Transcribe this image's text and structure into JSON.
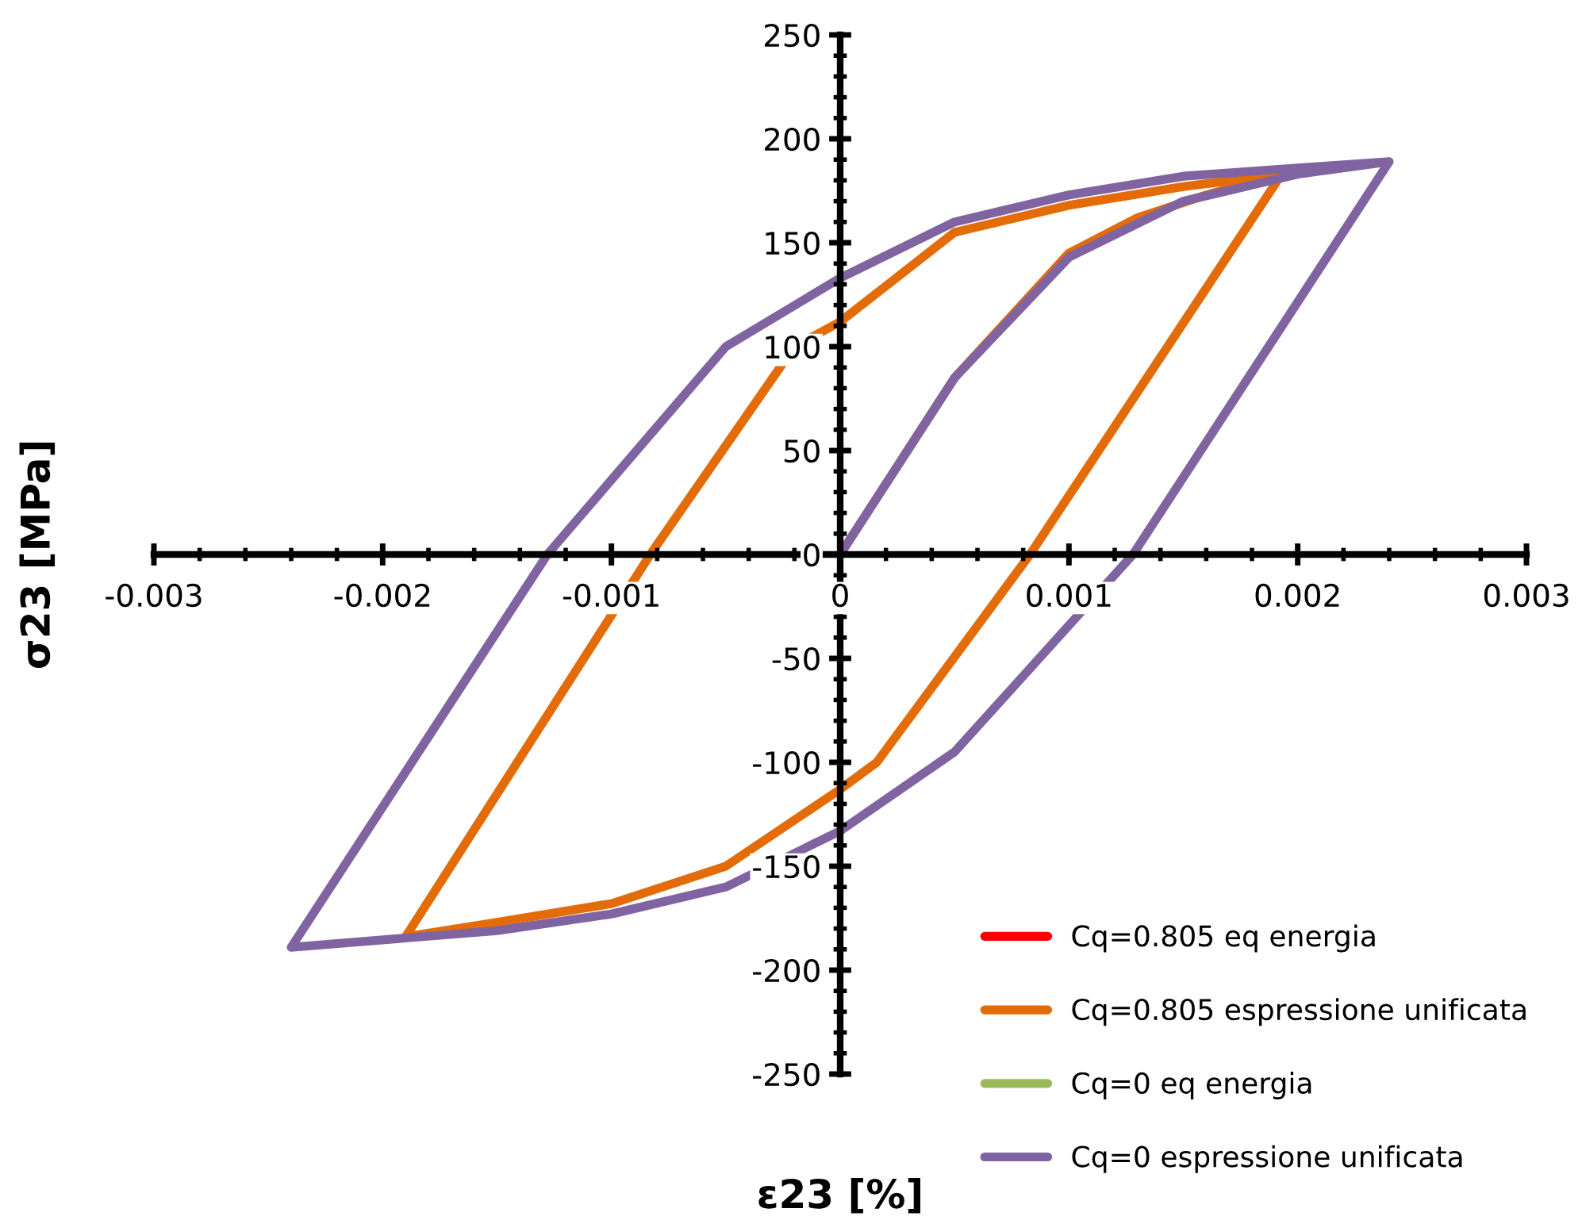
{
  "chart_data": {
    "type": "line",
    "xlabel": "ε23 [%]",
    "ylabel": "σ23 [MPa]",
    "xlim": [
      -0.003,
      0.003
    ],
    "xticks": [
      -0.003,
      {
        "value": -0.0028,
        "label": null
      },
      {
        "value": -0.0026,
        "label": null
      },
      {
        "value": -0.0024,
        "label": null
      },
      {
        "value": -0.0022,
        "label": null
      },
      -0.002,
      {
        "value": -0.0018,
        "label": null
      },
      {
        "value": -0.0016,
        "label": null
      },
      {
        "value": -0.0014,
        "label": null
      },
      {
        "value": -0.0012,
        "label": null
      },
      -0.001,
      {
        "value": -0.0008,
        "label": null
      },
      {
        "value": -0.0006,
        "label": null
      },
      {
        "value": -0.0004,
        "label": null
      },
      {
        "value": -0.0002,
        "label": null
      },
      {
        "value": 0,
        "label": "0"
      },
      {
        "value": 0.0002,
        "label": null
      },
      {
        "value": 0.0004,
        "label": null
      },
      {
        "value": 0.0006,
        "label": null
      },
      {
        "value": 0.0008,
        "label": null
      },
      0.001,
      {
        "value": 0.0012,
        "label": null
      },
      {
        "value": 0.0014,
        "label": null
      },
      {
        "value": 0.0016,
        "label": null
      },
      {
        "value": 0.0018,
        "label": null
      },
      0.002,
      {
        "value": 0.0022,
        "label": null
      },
      {
        "value": 0.0024,
        "label": null
      },
      {
        "value": 0.0026,
        "label": null
      },
      {
        "value": 0.0028,
        "label": null
      },
      0.003
    ],
    "ylim": [
      -250,
      250
    ],
    "yticks": [
      -250,
      {
        "value": -240,
        "label": null
      },
      {
        "value": -230,
        "label": null
      },
      {
        "value": -220,
        "label": null
      },
      {
        "value": -210,
        "label": null
      },
      -200,
      {
        "value": -190,
        "label": null
      },
      {
        "value": -180,
        "label": null
      },
      {
        "value": -170,
        "label": null
      },
      {
        "value": -160,
        "label": null
      },
      -150,
      {
        "value": -140,
        "label": null
      },
      {
        "value": -130,
        "label": null
      },
      {
        "value": -120,
        "label": null
      },
      {
        "value": -110,
        "label": null
      },
      -100,
      {
        "value": -90,
        "label": null
      },
      {
        "value": -80,
        "label": null
      },
      {
        "value": -70,
        "label": null
      },
      {
        "value": -60,
        "label": null
      },
      -50,
      {
        "value": -40,
        "label": null
      },
      {
        "value": -30,
        "label": null
      },
      {
        "value": -20,
        "label": null
      },
      {
        "value": -10,
        "label": null
      },
      0,
      {
        "value": 10,
        "label": null
      },
      {
        "value": 20,
        "label": null
      },
      {
        "value": 30,
        "label": null
      },
      {
        "value": 40,
        "label": null
      },
      50,
      {
        "value": 60,
        "label": null
      },
      {
        "value": 70,
        "label": null
      },
      {
        "value": 80,
        "label": null
      },
      {
        "value": 90,
        "label": null
      },
      100,
      {
        "value": 110,
        "label": null
      },
      {
        "value": 120,
        "label": null
      },
      {
        "value": 130,
        "label": null
      },
      {
        "value": 140,
        "label": null
      },
      150,
      {
        "value": 160,
        "label": null
      },
      {
        "value": 170,
        "label": null
      },
      {
        "value": 180,
        "label": null
      },
      {
        "value": 190,
        "label": null
      },
      200,
      {
        "value": 210,
        "label": null
      },
      {
        "value": 220,
        "label": null
      },
      {
        "value": 230,
        "label": null
      },
      {
        "value": 240,
        "label": null
      },
      250
    ],
    "grid": false,
    "legend": "bottom right",
    "marker": "none",
    "line_style": "solid",
    "series": [
      {
        "name": "Cq=0.805 eq energia",
        "color": "#ff0000"
      },
      {
        "name": "Cq=0.805 espressione unificata",
        "color": "#e36c09",
        "x": [
          0.0,
          0.0005,
          0.001,
          0.0013,
          0.0016,
          0.00193,
          0.00083,
          0.00016,
          0.0,
          -0.0005,
          -0.001,
          -0.0015,
          -0.0019,
          -0.00083,
          -0.0002,
          0.0,
          0.0005,
          0.001,
          0.0015,
          0.00193
        ],
        "values": [
          0,
          85,
          145,
          162,
          173,
          183,
          0,
          -100,
          -113,
          -150,
          -168,
          -177,
          -184,
          0,
          100,
          112,
          155,
          168,
          177,
          183
        ]
      },
      {
        "name": "Cq=0 eq energia",
        "color": "#9bbb59"
      },
      {
        "name": "Cq=0 espressione unificata",
        "color": "#8064a2",
        "x": [
          0.0,
          0.0005,
          0.001,
          0.0015,
          0.002,
          0.0024,
          0.00128,
          0.0005,
          0.0,
          -0.0005,
          -0.001,
          -0.0015,
          -0.0024,
          -0.00128,
          -0.0005,
          0.0,
          0.0005,
          0.001,
          0.0015,
          0.002,
          0.0024
        ],
        "values": [
          0,
          85,
          143,
          170,
          183,
          189,
          0,
          -95,
          -133,
          -160,
          -173,
          -181,
          -189,
          0,
          100,
          133,
          160,
          173,
          182,
          186,
          189
        ]
      }
    ]
  }
}
